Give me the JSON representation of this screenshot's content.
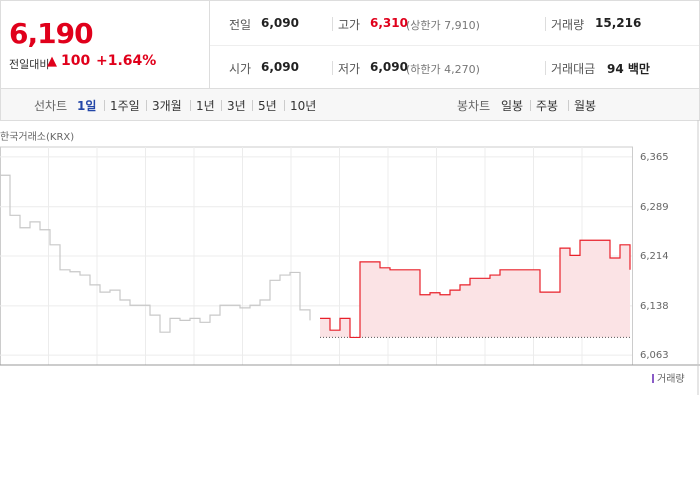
{
  "quote": {
    "price": "6,190",
    "change_label": "전일대비",
    "change": "100",
    "change_pct": "+1.64%"
  },
  "stats": [
    [
      {
        "label": "전일",
        "value": "6,090"
      },
      {
        "label": "고가",
        "value": "6,310",
        "note": "(상한가 7,910)"
      },
      {
        "label": "거래량",
        "value": "15,216"
      }
    ],
    [
      {
        "label": "시가",
        "value": "6,090"
      },
      {
        "label": "저가",
        "value": "6,090",
        "note": "(하한가 4,270)"
      },
      {
        "label": "거래대금",
        "value": "94 백만"
      }
    ]
  ],
  "tabs": {
    "line_label": "선차트",
    "line": [
      "1일",
      "1주일",
      "3개월",
      "1년",
      "3년",
      "5년",
      "10년"
    ],
    "line_active": 0,
    "candle_label": "봉차트",
    "candle": [
      "일봉",
      "주봉",
      "월봉"
    ]
  },
  "chart_data": {
    "type": "line",
    "source": "한국거래소(KRX)",
    "legend": "거래량",
    "x": [
      0,
      1,
      2,
      3,
      4,
      5,
      6,
      7,
      8,
      9,
      10,
      11,
      12,
      13,
      14,
      15,
      16,
      17,
      18,
      19,
      20,
      21,
      22,
      23,
      24,
      25,
      26,
      27,
      28,
      29,
      30,
      31,
      32,
      33,
      34,
      35,
      36,
      37,
      38,
      39,
      40,
      41,
      42,
      43,
      44,
      45,
      46,
      47,
      48,
      49,
      50,
      51,
      52,
      53,
      54,
      55,
      56,
      57,
      58,
      59,
      60,
      61,
      62,
      63
    ],
    "xlim": [
      0,
      63
    ],
    "ylim": [
      6048,
      6380
    ],
    "yticks": [
      {
        "value": 6365,
        "label": "6,365"
      },
      {
        "value": 6289,
        "label": "6,289"
      },
      {
        "value": 6214,
        "label": "6,214"
      },
      {
        "value": 6138,
        "label": "6,138"
      },
      {
        "value": 6063,
        "label": "6,063"
      }
    ],
    "baseline": 6090,
    "series": [
      {
        "color": "#c8c8c8",
        "values": [
          6337,
          6276,
          6257,
          6266,
          6254,
          6231,
          6193,
          6190,
          6185,
          6170,
          6159,
          6162,
          6147,
          6139,
          6139,
          6124,
          6098,
          6119,
          6116,
          6119,
          6113,
          6124,
          6139,
          6139,
          6135,
          6139,
          6147,
          6177,
          6185,
          6189,
          6132,
          6116,
          null,
          null,
          null,
          null,
          null,
          null,
          null,
          null,
          null,
          null,
          null,
          null,
          null,
          null,
          null,
          null,
          null,
          null,
          null,
          null,
          null,
          null,
          null,
          null,
          null,
          null,
          null,
          null,
          null,
          null,
          null,
          null
        ]
      },
      {
        "color": "#e8202a",
        "fill": "#fbe3e5",
        "values": [
          null,
          null,
          null,
          null,
          null,
          null,
          null,
          null,
          null,
          null,
          null,
          null,
          null,
          null,
          null,
          null,
          null,
          null,
          null,
          null,
          null,
          null,
          null,
          null,
          null,
          null,
          null,
          null,
          null,
          null,
          null,
          null,
          6119,
          6101,
          6119,
          6090,
          6205,
          6205,
          6196,
          6193,
          6193,
          6193,
          6155,
          6158,
          6155,
          6162,
          6170,
          6180,
          6180,
          6185,
          6193,
          6193,
          6193,
          6193,
          6159,
          6159,
          6226,
          6215,
          6238,
          6238,
          6238,
          6211,
          6231,
          6193
        ]
      }
    ]
  }
}
